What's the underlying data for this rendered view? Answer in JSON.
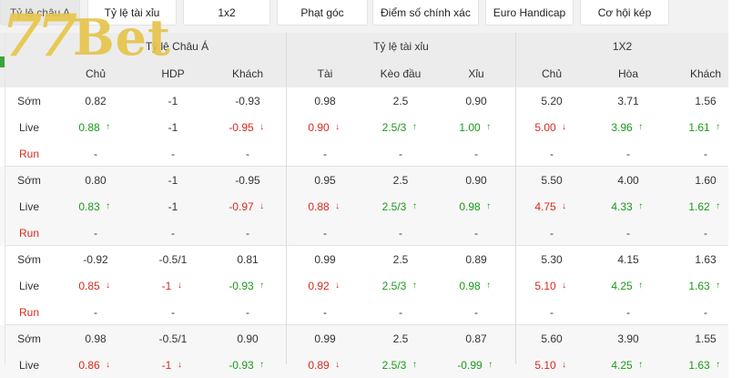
{
  "tabs": [
    {
      "label": "Tỷ lệ châu A",
      "active": true
    },
    {
      "label": "Tỷ lệ tài xỉu",
      "active": false
    },
    {
      "label": "1x2",
      "active": false
    },
    {
      "label": "Phạt góc",
      "active": false
    },
    {
      "label": "Điểm số chính xác",
      "active": false
    },
    {
      "label": "Euro Handicap",
      "active": false
    },
    {
      "label": "Cơ hội kép",
      "active": false
    }
  ],
  "logo": {
    "number": "77",
    "word": "Bet"
  },
  "groups": [
    "Tỷ lệ Châu Á",
    "Tỷ lệ tài xỉu",
    "1X2"
  ],
  "columns": [
    "Chủ",
    "HDP",
    "Khách",
    "Tài",
    "Kèo đầu",
    "Xỉu",
    "Chủ",
    "Hòa",
    "Khách"
  ],
  "colors": {
    "up": "#1a9a1a",
    "down": "#d9281e",
    "run": "#d9281e"
  },
  "rows": [
    {
      "label": "Sớm",
      "type": "early",
      "cells": [
        {
          "v": "0.82"
        },
        {
          "v": "-1"
        },
        {
          "v": "-0.93"
        },
        {
          "v": "0.98"
        },
        {
          "v": "2.5"
        },
        {
          "v": "0.90"
        },
        {
          "v": "5.20"
        },
        {
          "v": "3.71"
        },
        {
          "v": "1.56"
        }
      ]
    },
    {
      "label": "Live",
      "type": "live",
      "cells": [
        {
          "v": "0.88",
          "t": "up"
        },
        {
          "v": "-1"
        },
        {
          "v": "-0.95",
          "t": "down"
        },
        {
          "v": "0.90",
          "t": "down"
        },
        {
          "v": "2.5/3",
          "t": "up"
        },
        {
          "v": "1.00",
          "t": "up"
        },
        {
          "v": "5.00",
          "t": "down"
        },
        {
          "v": "3.96",
          "t": "up"
        },
        {
          "v": "1.61",
          "t": "up"
        }
      ]
    },
    {
      "label": "Run",
      "type": "run",
      "cells": [
        {
          "v": "-"
        },
        {
          "v": "-"
        },
        {
          "v": "-"
        },
        {
          "v": "-"
        },
        {
          "v": "-"
        },
        {
          "v": "-"
        },
        {
          "v": "-"
        },
        {
          "v": "-"
        },
        {
          "v": "-"
        }
      ]
    },
    {
      "label": "Sớm",
      "type": "early",
      "cells": [
        {
          "v": "0.80"
        },
        {
          "v": "-1"
        },
        {
          "v": "-0.95"
        },
        {
          "v": "0.95"
        },
        {
          "v": "2.5"
        },
        {
          "v": "0.90"
        },
        {
          "v": "5.50"
        },
        {
          "v": "4.00"
        },
        {
          "v": "1.60"
        }
      ]
    },
    {
      "label": "Live",
      "type": "live",
      "cells": [
        {
          "v": "0.83",
          "t": "up"
        },
        {
          "v": "-1"
        },
        {
          "v": "-0.97",
          "t": "down"
        },
        {
          "v": "0.88",
          "t": "down"
        },
        {
          "v": "2.5/3",
          "t": "up"
        },
        {
          "v": "0.98",
          "t": "up"
        },
        {
          "v": "4.75",
          "t": "down"
        },
        {
          "v": "4.33",
          "t": "up"
        },
        {
          "v": "1.62",
          "t": "up"
        }
      ]
    },
    {
      "label": "Run",
      "type": "run",
      "cells": [
        {
          "v": "-"
        },
        {
          "v": "-"
        },
        {
          "v": "-"
        },
        {
          "v": "-"
        },
        {
          "v": "-"
        },
        {
          "v": "-"
        },
        {
          "v": "-"
        },
        {
          "v": "-"
        },
        {
          "v": "-"
        }
      ]
    },
    {
      "label": "Sớm",
      "type": "early",
      "cells": [
        {
          "v": "-0.92"
        },
        {
          "v": "-0.5/1"
        },
        {
          "v": "0.81"
        },
        {
          "v": "0.99"
        },
        {
          "v": "2.5"
        },
        {
          "v": "0.89"
        },
        {
          "v": "5.30"
        },
        {
          "v": "4.15"
        },
        {
          "v": "1.63"
        }
      ]
    },
    {
      "label": "Live",
      "type": "live",
      "cells": [
        {
          "v": "0.85",
          "t": "down"
        },
        {
          "v": "-1",
          "t": "down"
        },
        {
          "v": "-0.93",
          "t": "up"
        },
        {
          "v": "0.92",
          "t": "down"
        },
        {
          "v": "2.5/3",
          "t": "up"
        },
        {
          "v": "0.98",
          "t": "up"
        },
        {
          "v": "5.10",
          "t": "down"
        },
        {
          "v": "4.25",
          "t": "up"
        },
        {
          "v": "1.63",
          "t": "up"
        }
      ]
    },
    {
      "label": "Run",
      "type": "run",
      "cells": [
        {
          "v": "-"
        },
        {
          "v": "-"
        },
        {
          "v": "-"
        },
        {
          "v": "-"
        },
        {
          "v": "-"
        },
        {
          "v": "-"
        },
        {
          "v": "-"
        },
        {
          "v": "-"
        },
        {
          "v": "-"
        }
      ]
    },
    {
      "label": "Sớm",
      "type": "early",
      "cells": [
        {
          "v": "0.98"
        },
        {
          "v": "-0.5/1"
        },
        {
          "v": "0.90"
        },
        {
          "v": "0.99"
        },
        {
          "v": "2.5"
        },
        {
          "v": "0.87"
        },
        {
          "v": "5.60"
        },
        {
          "v": "3.90"
        },
        {
          "v": "1.55"
        }
      ]
    },
    {
      "label": "Live",
      "type": "live",
      "cells": [
        {
          "v": "0.86",
          "t": "down"
        },
        {
          "v": "-1",
          "t": "down"
        },
        {
          "v": "-0.93",
          "t": "up"
        },
        {
          "v": "0.89",
          "t": "down"
        },
        {
          "v": "2.5/3",
          "t": "up"
        },
        {
          "v": "-0.99",
          "t": "up"
        },
        {
          "v": "5.10",
          "t": "down"
        },
        {
          "v": "4.25",
          "t": "up"
        },
        {
          "v": "1.63",
          "t": "up"
        }
      ]
    }
  ]
}
